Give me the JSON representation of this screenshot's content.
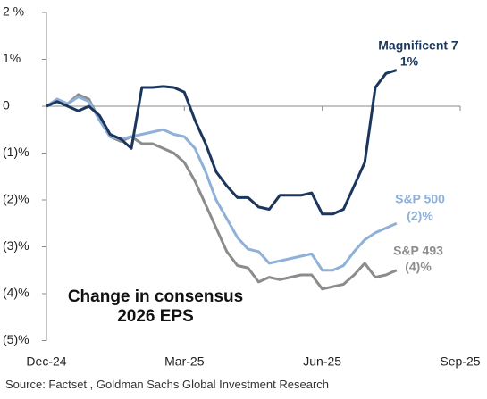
{
  "chart_data": {
    "type": "line",
    "title": "Change in consensus 2026 EPS",
    "source": "Source: Factset , Goldman Sachs Global Investment Research",
    "categories": [
      "Dec-24",
      null,
      null,
      null,
      null,
      null,
      null,
      null,
      null,
      null,
      null,
      null,
      null,
      "Mar-25",
      null,
      null,
      null,
      null,
      null,
      null,
      null,
      null,
      null,
      null,
      null,
      null,
      "Jun-25",
      null,
      null,
      null,
      null,
      null,
      null,
      null,
      null,
      null,
      null,
      null,
      null,
      "Sep-25"
    ],
    "series": [
      {
        "name": "Magnificent 7",
        "end_label": "1%",
        "color": "#1b365d",
        "values": [
          0,
          0.1,
          0.0,
          -0.1,
          0.0,
          -0.2,
          -0.6,
          -0.7,
          -0.9,
          0.4,
          0.4,
          0.42,
          0.4,
          0.3,
          -0.3,
          -0.8,
          -1.4,
          -1.7,
          -1.95,
          -1.95,
          -2.15,
          -2.2,
          -1.9,
          -1.9,
          -1.9,
          -1.85,
          -2.3,
          -2.3,
          -2.2,
          -1.7,
          -1.2,
          0.4,
          0.7,
          0.77,
          null,
          null,
          null,
          null,
          null,
          null
        ]
      },
      {
        "name": "S&P 500",
        "end_label": "(2)%",
        "color": "#8fb0d8",
        "values": [
          0,
          0.15,
          0.05,
          0.2,
          0.1,
          -0.3,
          -0.65,
          -0.7,
          -0.65,
          -0.6,
          -0.55,
          -0.5,
          -0.6,
          -0.65,
          -0.9,
          -1.4,
          -2.0,
          -2.4,
          -2.8,
          -3.05,
          -3.1,
          -3.35,
          -3.3,
          -3.25,
          -3.2,
          -3.15,
          -3.5,
          -3.5,
          -3.4,
          -3.1,
          -2.85,
          -2.7,
          -2.6,
          -2.5,
          null,
          null,
          null,
          null,
          null,
          null
        ]
      },
      {
        "name": "S&P 493",
        "end_label": "(4)%",
        "color": "#8c8c8c",
        "values": [
          0,
          0.15,
          0.05,
          0.25,
          0.15,
          -0.3,
          -0.65,
          -0.75,
          -0.65,
          -0.8,
          -0.8,
          -0.9,
          -1.0,
          -1.2,
          -1.6,
          -2.1,
          -2.6,
          -3.1,
          -3.4,
          -3.45,
          -3.75,
          -3.65,
          -3.7,
          -3.65,
          -3.6,
          -3.6,
          -3.9,
          -3.85,
          -3.8,
          -3.6,
          -3.35,
          -3.65,
          -3.6,
          -3.5,
          null,
          null,
          null,
          null,
          null,
          null
        ]
      }
    ],
    "ylim": [
      -5,
      2
    ],
    "yticks": [
      {
        "value": 2,
        "label": "2 %"
      },
      {
        "value": 1,
        "label": "1%"
      },
      0,
      {
        "value": -1,
        "label": "(1)%"
      },
      {
        "value": -2,
        "label": "(2)%"
      },
      {
        "value": -3,
        "label": "(3)%"
      },
      {
        "value": -4,
        "label": "(4)%"
      },
      {
        "value": -5,
        "label": "(5)%"
      }
    ],
    "grid": false
  }
}
